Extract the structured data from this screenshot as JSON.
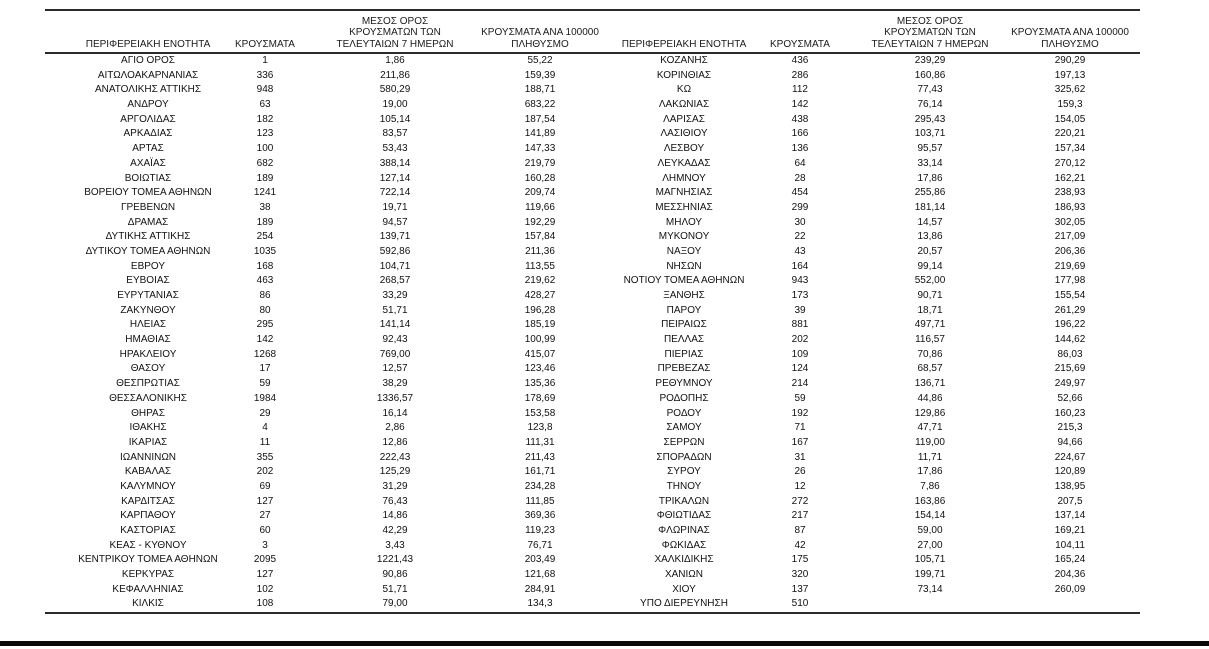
{
  "table": {
    "headers": {
      "region": "ΠΕΡΙΦΕΡΕΙΑΚΗ ΕΝΟΤΗΤΑ",
      "cases": "ΚΡΟΥΣΜΑΤΑ",
      "avg7": "ΜΕΣΟΣ ΟΡΟΣ\nΚΡΟΥΣΜΑΤΩΝ ΤΩΝ\nΤΕΛΕΥΤΑΙΩΝ 7 ΗΜΕΡΩΝ",
      "per100k": "ΚΡΟΥΣΜΑΤΑ ΑΝΑ 100000\nΠΛΗΘΥΣΜΟ"
    },
    "left_rows": [
      [
        "ΑΓΙΟ ΟΡΟΣ",
        "1",
        "1,86",
        "55,22"
      ],
      [
        "ΑΙΤΩΛΟΑΚΑΡΝΑΝΙΑΣ",
        "336",
        "211,86",
        "159,39"
      ],
      [
        "ΑΝΑΤΟΛΙΚΗΣ ΑΤΤΙΚΗΣ",
        "948",
        "580,29",
        "188,71"
      ],
      [
        "ΑΝΔΡΟΥ",
        "63",
        "19,00",
        "683,22"
      ],
      [
        "ΑΡΓΟΛΙΔΑΣ",
        "182",
        "105,14",
        "187,54"
      ],
      [
        "ΑΡΚΑΔΙΑΣ",
        "123",
        "83,57",
        "141,89"
      ],
      [
        "ΑΡΤΑΣ",
        "100",
        "53,43",
        "147,33"
      ],
      [
        "ΑΧΑΪΑΣ",
        "682",
        "388,14",
        "219,79"
      ],
      [
        "ΒΟΙΩΤΙΑΣ",
        "189",
        "127,14",
        "160,28"
      ],
      [
        "ΒΟΡΕΙΟΥ ΤΟΜΕΑ ΑΘΗΝΩΝ",
        "1241",
        "722,14",
        "209,74"
      ],
      [
        "ΓΡΕΒΕΝΩΝ",
        "38",
        "19,71",
        "119,66"
      ],
      [
        "ΔΡΑΜΑΣ",
        "189",
        "94,57",
        "192,29"
      ],
      [
        "ΔΥΤΙΚΗΣ ΑΤΤΙΚΗΣ",
        "254",
        "139,71",
        "157,84"
      ],
      [
        "ΔΥΤΙΚΟΥ ΤΟΜΕΑ ΑΘΗΝΩΝ",
        "1035",
        "592,86",
        "211,36"
      ],
      [
        "ΕΒΡΟΥ",
        "168",
        "104,71",
        "113,55"
      ],
      [
        "ΕΥΒΟΙΑΣ",
        "463",
        "268,57",
        "219,62"
      ],
      [
        "ΕΥΡΥΤΑΝΙΑΣ",
        "86",
        "33,29",
        "428,27"
      ],
      [
        "ΖΑΚΥΝΘΟΥ",
        "80",
        "51,71",
        "196,28"
      ],
      [
        "ΗΛΕΙΑΣ",
        "295",
        "141,14",
        "185,19"
      ],
      [
        "ΗΜΑΘΙΑΣ",
        "142",
        "92,43",
        "100,99"
      ],
      [
        "ΗΡΑΚΛΕΙΟΥ",
        "1268",
        "769,00",
        "415,07"
      ],
      [
        "ΘΑΣΟΥ",
        "17",
        "12,57",
        "123,46"
      ],
      [
        "ΘΕΣΠΡΩΤΙΑΣ",
        "59",
        "38,29",
        "135,36"
      ],
      [
        "ΘΕΣΣΑΛΟΝΙΚΗΣ",
        "1984",
        "1336,57",
        "178,69"
      ],
      [
        "ΘΗΡΑΣ",
        "29",
        "16,14",
        "153,58"
      ],
      [
        "ΙΘΑΚΗΣ",
        "4",
        "2,86",
        "123,8"
      ],
      [
        "ΙΚΑΡΙΑΣ",
        "11",
        "12,86",
        "111,31"
      ],
      [
        "ΙΩΑΝΝΙΝΩΝ",
        "355",
        "222,43",
        "211,43"
      ],
      [
        "ΚΑΒΑΛΑΣ",
        "202",
        "125,29",
        "161,71"
      ],
      [
        "ΚΑΛΥΜΝΟΥ",
        "69",
        "31,29",
        "234,28"
      ],
      [
        "ΚΑΡΔΙΤΣΑΣ",
        "127",
        "76,43",
        "111,85"
      ],
      [
        "ΚΑΡΠΑΘΟΥ",
        "27",
        "14,86",
        "369,36"
      ],
      [
        "ΚΑΣΤΟΡΙΑΣ",
        "60",
        "42,29",
        "119,23"
      ],
      [
        "ΚΕΑΣ - ΚΥΘΝΟΥ",
        "3",
        "3,43",
        "76,71"
      ],
      [
        "ΚΕΝΤΡΙΚΟΥ ΤΟΜΕΑ ΑΘΗΝΩΝ",
        "2095",
        "1221,43",
        "203,49"
      ],
      [
        "ΚΕΡΚΥΡΑΣ",
        "127",
        "90,86",
        "121,68"
      ],
      [
        "ΚΕΦΑΛΛΗΝΙΑΣ",
        "102",
        "51,71",
        "284,91"
      ],
      [
        "ΚΙΛΚΙΣ",
        "108",
        "79,00",
        "134,3"
      ]
    ],
    "right_rows": [
      [
        "ΚΟΖΑΝΗΣ",
        "436",
        "239,29",
        "290,29"
      ],
      [
        "ΚΟΡΙΝΘΙΑΣ",
        "286",
        "160,86",
        "197,13"
      ],
      [
        "ΚΩ",
        "112",
        "77,43",
        "325,62"
      ],
      [
        "ΛΑΚΩΝΙΑΣ",
        "142",
        "76,14",
        "159,3"
      ],
      [
        "ΛΑΡΙΣΑΣ",
        "438",
        "295,43",
        "154,05"
      ],
      [
        "ΛΑΣΙΘΙΟΥ",
        "166",
        "103,71",
        "220,21"
      ],
      [
        "ΛΕΣΒΟΥ",
        "136",
        "95,57",
        "157,34"
      ],
      [
        "ΛΕΥΚΑΔΑΣ",
        "64",
        "33,14",
        "270,12"
      ],
      [
        "ΛΗΜΝΟΥ",
        "28",
        "17,86",
        "162,21"
      ],
      [
        "ΜΑΓΝΗΣΙΑΣ",
        "454",
        "255,86",
        "238,93"
      ],
      [
        "ΜΕΣΣΗΝΙΑΣ",
        "299",
        "181,14",
        "186,93"
      ],
      [
        "ΜΗΛΟΥ",
        "30",
        "14,57",
        "302,05"
      ],
      [
        "ΜΥΚΟΝΟΥ",
        "22",
        "13,86",
        "217,09"
      ],
      [
        "ΝΑΞΟΥ",
        "43",
        "20,57",
        "206,36"
      ],
      [
        "ΝΗΣΩΝ",
        "164",
        "99,14",
        "219,69"
      ],
      [
        "ΝΟΤΙΟΥ ΤΟΜΕΑ ΑΘΗΝΩΝ",
        "943",
        "552,00",
        "177,98"
      ],
      [
        "ΞΑΝΘΗΣ",
        "173",
        "90,71",
        "155,54"
      ],
      [
        "ΠΑΡΟΥ",
        "39",
        "18,71",
        "261,29"
      ],
      [
        "ΠΕΙΡΑΙΩΣ",
        "881",
        "497,71",
        "196,22"
      ],
      [
        "ΠΕΛΛΑΣ",
        "202",
        "116,57",
        "144,62"
      ],
      [
        "ΠΙΕΡΙΑΣ",
        "109",
        "70,86",
        "86,03"
      ],
      [
        "ΠΡΕΒΕΖΑΣ",
        "124",
        "68,57",
        "215,69"
      ],
      [
        "ΡΕΘΥΜΝΟΥ",
        "214",
        "136,71",
        "249,97"
      ],
      [
        "ΡΟΔΟΠΗΣ",
        "59",
        "44,86",
        "52,66"
      ],
      [
        "ΡΟΔΟΥ",
        "192",
        "129,86",
        "160,23"
      ],
      [
        "ΣΑΜΟΥ",
        "71",
        "47,71",
        "215,3"
      ],
      [
        "ΣΕΡΡΩΝ",
        "167",
        "119,00",
        "94,66"
      ],
      [
        "ΣΠΟΡΑΔΩΝ",
        "31",
        "11,71",
        "224,67"
      ],
      [
        "ΣΥΡΟΥ",
        "26",
        "17,86",
        "120,89"
      ],
      [
        "ΤΗΝΟΥ",
        "12",
        "7,86",
        "138,95"
      ],
      [
        "ΤΡΙΚΑΛΩΝ",
        "272",
        "163,86",
        "207,5"
      ],
      [
        "ΦΘΙΩΤΙΔΑΣ",
        "217",
        "154,14",
        "137,14"
      ],
      [
        "ΦΛΩΡΙΝΑΣ",
        "87",
        "59,00",
        "169,21"
      ],
      [
        "ΦΩΚΙΔΑΣ",
        "42",
        "27,00",
        "104,11"
      ],
      [
        "ΧΑΛΚΙΔΙΚΗΣ",
        "175",
        "105,71",
        "165,24"
      ],
      [
        "ΧΑΝΙΩΝ",
        "320",
        "199,71",
        "204,36"
      ],
      [
        "ΧΙΟΥ",
        "137",
        "73,14",
        "260,09"
      ],
      [
        "ΥΠΟ ΔΙΕΡΕΥΝΗΣΗ",
        "510",
        "",
        ""
      ]
    ]
  },
  "colors": {
    "rule": "#2b2b2b",
    "bottom_bar": "#0a0a0a",
    "text": "#111111"
  }
}
